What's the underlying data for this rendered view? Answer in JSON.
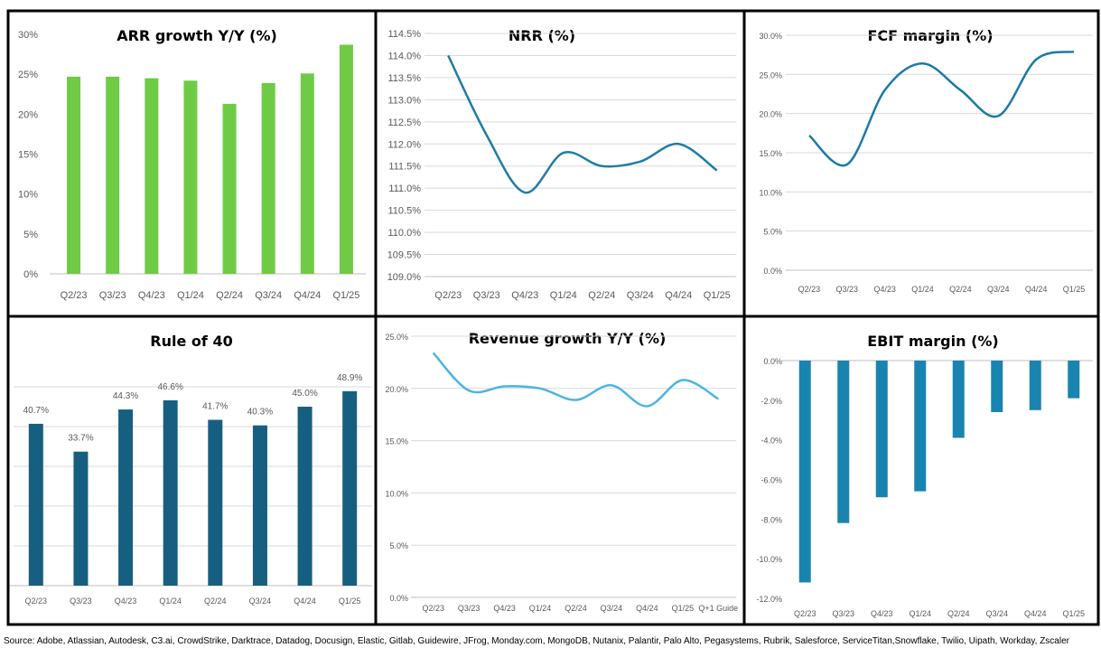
{
  "chart_data": [
    {
      "type": "bar",
      "title": "ARR growth Y/Y (%)",
      "categories": [
        "Q2/23",
        "Q3/23",
        "Q4/23",
        "Q1/24",
        "Q2/24",
        "Q3/24",
        "Q4/24",
        "Q1/25"
      ],
      "values": [
        24.7,
        24.7,
        24.5,
        24.2,
        21.3,
        23.9,
        25.1,
        28.7
      ],
      "ylim": [
        0,
        30
      ],
      "yticks": [
        "0%",
        "5%",
        "10%",
        "15%",
        "20%",
        "25%",
        "30%"
      ],
      "color": "#6fcb45"
    },
    {
      "type": "line",
      "title": "NRR (%)",
      "categories": [
        "Q2/23",
        "Q3/23",
        "Q4/23",
        "Q1/24",
        "Q2/24",
        "Q3/24",
        "Q4/24",
        "Q1/25"
      ],
      "values": [
        114.0,
        112.2,
        110.9,
        111.8,
        111.5,
        111.6,
        112.0,
        111.4
      ],
      "ylim": [
        109,
        114.5
      ],
      "yticks": [
        "109.0%",
        "109.5%",
        "110.0%",
        "110.5%",
        "111.0%",
        "111.5%",
        "112.0%",
        "112.5%",
        "113.0%",
        "113.5%",
        "114.0%",
        "114.5%"
      ],
      "color": "#1f7ca6"
    },
    {
      "type": "line",
      "title": "FCF margin (%)",
      "categories": [
        "Q2/23",
        "Q3/23",
        "Q4/23",
        "Q1/24",
        "Q2/24",
        "Q3/24",
        "Q4/24",
        "Q1/25"
      ],
      "values": [
        17.2,
        13.5,
        23.0,
        26.4,
        23.0,
        19.7,
        26.9,
        27.9
      ],
      "ylim": [
        0,
        30
      ],
      "yticks": [
        "0.0%",
        "5.0%",
        "10.0%",
        "15.0%",
        "20.0%",
        "25.0%",
        "30.0%"
      ],
      "color": "#1a7aa5"
    },
    {
      "type": "bar",
      "title": "Rule of 40",
      "categories": [
        "Q2/23",
        "Q3/23",
        "Q4/23",
        "Q1/24",
        "Q2/24",
        "Q3/24",
        "Q4/24",
        "Q1/25"
      ],
      "values": [
        40.7,
        33.7,
        44.3,
        46.6,
        41.7,
        40.3,
        45.0,
        48.9
      ],
      "data_labels": [
        "40.7%",
        "33.7%",
        "44.3%",
        "46.6%",
        "41.7%",
        "40.3%",
        "45.0%",
        "48.9%"
      ],
      "ylim": [
        0,
        50
      ],
      "color": "#175f80"
    },
    {
      "type": "line",
      "title": "Revenue growth Y/Y (%)",
      "categories": [
        "Q2/23",
        "Q3/23",
        "Q4/23",
        "Q1/24",
        "Q2/24",
        "Q3/24",
        "Q4/24",
        "Q1/25",
        "Q+1 Guide"
      ],
      "values": [
        23.4,
        19.8,
        20.2,
        20.0,
        18.9,
        20.3,
        18.3,
        20.8,
        19.0
      ],
      "ylim": [
        0,
        25
      ],
      "yticks": [
        "0.0%",
        "5.0%",
        "10.0%",
        "15.0%",
        "20.0%",
        "25.0%"
      ],
      "color": "#4ab4e4"
    },
    {
      "type": "bar",
      "title": "EBIT margin (%)",
      "categories": [
        "Q2/23",
        "Q3/23",
        "Q4/23",
        "Q1/24",
        "Q2/24",
        "Q3/24",
        "Q4/24",
        "Q1/25"
      ],
      "values": [
        -11.2,
        -8.2,
        -6.9,
        -6.6,
        -3.9,
        -2.6,
        -2.5,
        -1.9
      ],
      "ylim": [
        -12,
        0
      ],
      "yticks": [
        "-12.0%",
        "-10.0%",
        "-8.0%",
        "-6.0%",
        "-4.0%",
        "-2.0%",
        "0.0%"
      ],
      "color": "#1a84b0"
    }
  ],
  "source": "Source: Adobe, Atlassian, Autodesk, C3.ai, CrowdStrike, Darktrace, Datadog, Docusign, Elastic, Gitlab, Guidewire, JFrog, Monday.com, MongoDB, Nutanix, Palantir, Palo Alto, Pegasystems, Rubrik, Salesforce, ServiceTitan,Snowflake, Twilio, Uipath, Workday, Zscaler"
}
